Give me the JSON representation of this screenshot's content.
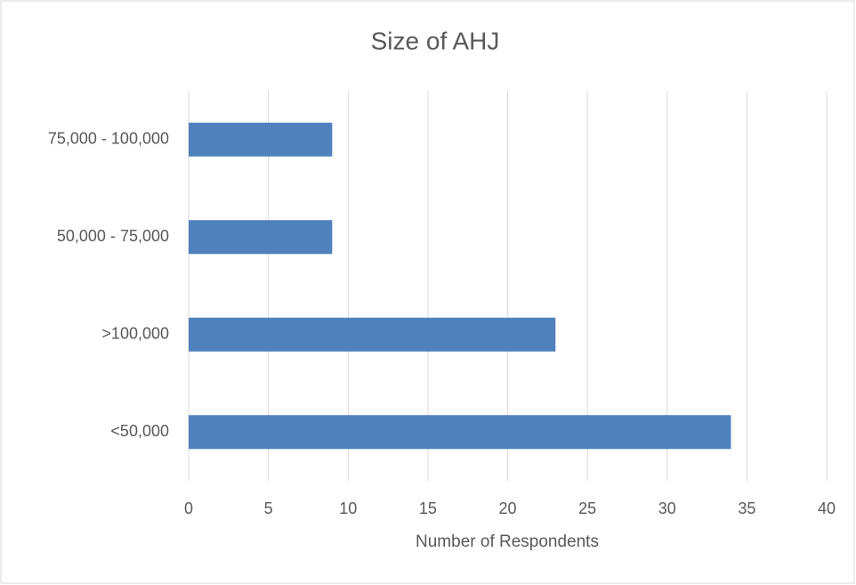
{
  "chart_data": {
    "type": "bar",
    "orientation": "horizontal",
    "title": "Size of AHJ",
    "categories": [
      "<50,000",
      ">100,000",
      "50,000 - 75,000",
      "75,000 - 100,000"
    ],
    "values": [
      34,
      23,
      9,
      9
    ],
    "color": "#4f81bd",
    "xlabel": "Number of Respondents",
    "xlim": [
      0,
      40
    ],
    "xticks": [
      0,
      5,
      10,
      15,
      20,
      25,
      30,
      35,
      40
    ],
    "grid": true
  }
}
